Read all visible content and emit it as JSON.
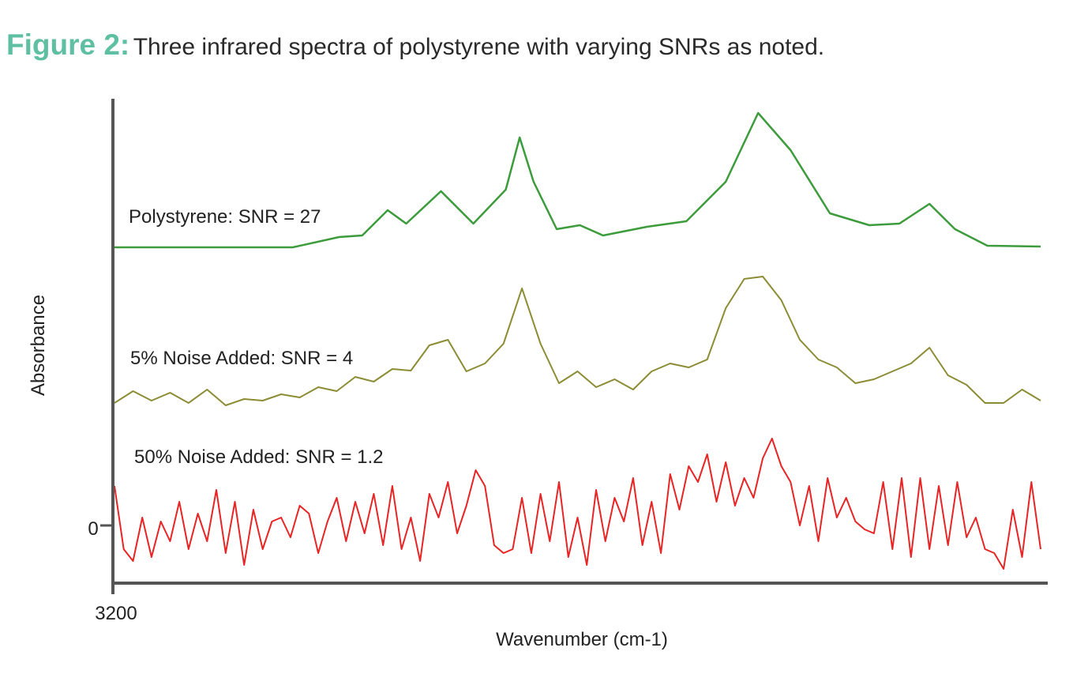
{
  "title": {
    "figure_label": "Figure 2:",
    "caption": "Three infrared spectra of polystyrene with varying SNRs as noted."
  },
  "chart_data": {
    "type": "line",
    "title": "Figure 2: Three infrared spectra of polystyrene with varying SNRs as noted.",
    "xlabel": "Wavenumber (cm-1)",
    "ylabel": "Absorbance",
    "xlim": [
      3200,
      2800
    ],
    "x_ticks": [
      "3200"
    ],
    "y_ticks": [
      "0"
    ],
    "grid": false,
    "legend": "inline labels above each trace",
    "series": [
      {
        "name": "Polystyrene: SNR = 27",
        "color": "#3c9c3c",
        "x": [
          3200,
          3123,
          3103,
          3093,
          3082,
          3074,
          3059,
          3045,
          3031,
          3025,
          3019,
          3009,
          2999,
          2989,
          2970,
          2953,
          2936,
          2922,
          2908,
          2891,
          2874,
          2861,
          2848,
          2837,
          2823,
          2800
        ],
        "y": [
          3.52,
          3.52,
          3.65,
          3.67,
          3.99,
          3.82,
          4.23,
          3.82,
          4.25,
          4.91,
          4.35,
          3.75,
          3.8,
          3.67,
          3.78,
          3.85,
          4.35,
          5.22,
          4.75,
          3.95,
          3.8,
          3.82,
          4.07,
          3.75,
          3.54,
          3.53
        ]
      },
      {
        "name": "5% Noise Added: SNR = 4",
        "color": "#8c8c34",
        "x_start": 3200,
        "x_end": 2800,
        "y": [
          1.55,
          1.7,
          1.58,
          1.68,
          1.55,
          1.72,
          1.52,
          1.6,
          1.58,
          1.66,
          1.62,
          1.75,
          1.7,
          1.88,
          1.82,
          1.98,
          1.96,
          2.28,
          2.35,
          1.95,
          2.05,
          2.3,
          3.0,
          2.3,
          1.8,
          1.95,
          1.75,
          1.85,
          1.72,
          1.95,
          2.05,
          2.0,
          2.1,
          2.75,
          3.12,
          3.15,
          2.85,
          2.35,
          2.1,
          2.0,
          1.8,
          1.85,
          1.95,
          2.05,
          2.25,
          1.9,
          1.78,
          1.55,
          1.55,
          1.72,
          1.58
        ]
      },
      {
        "name": "50% Noise Added: SNR = 1.2",
        "color": "#e82424",
        "x_start": 3200,
        "x_end": 2800,
        "y": [
          0.5,
          -0.3,
          -0.45,
          0.1,
          -0.4,
          0.05,
          -0.2,
          0.3,
          -0.3,
          0.15,
          -0.2,
          0.45,
          -0.35,
          0.3,
          -0.5,
          0.2,
          -0.3,
          0.05,
          0.1,
          -0.15,
          0.25,
          0.15,
          -0.35,
          0.05,
          0.35,
          -0.2,
          0.3,
          -0.1,
          0.4,
          -0.25,
          0.5,
          -0.3,
          0.1,
          -0.45,
          0.4,
          0.1,
          0.55,
          -0.1,
          0.25,
          0.7,
          0.5,
          -0.25,
          -0.35,
          -0.3,
          0.35,
          -0.35,
          0.4,
          -0.2,
          0.55,
          -0.4,
          0.1,
          -0.5,
          0.45,
          -0.2,
          0.35,
          0.05,
          0.6,
          -0.25,
          0.3,
          -0.35,
          0.65,
          0.2,
          0.75,
          0.55,
          0.9,
          0.3,
          0.8,
          0.25,
          0.6,
          0.35,
          0.85,
          1.1,
          0.75,
          0.55,
          0.0,
          0.5,
          -0.2,
          0.6,
          0.1,
          0.35,
          0.05,
          -0.05,
          -0.1,
          0.55,
          -0.3,
          0.6,
          -0.4,
          0.6,
          -0.3,
          0.5,
          -0.25,
          0.55,
          -0.15,
          0.1,
          -0.3,
          -0.35,
          -0.55,
          0.2,
          -0.4,
          0.55,
          -0.3
        ]
      }
    ]
  }
}
